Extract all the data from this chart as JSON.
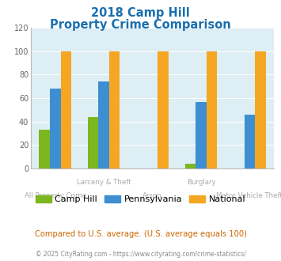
{
  "title_line1": "2018 Camp Hill",
  "title_line2": "Property Crime Comparison",
  "title_color": "#1a6faf",
  "categories": [
    "All Property Crime",
    "Larceny & Theft",
    "Arson",
    "Burglary",
    "Motor Vehicle Theft"
  ],
  "top_labels": [
    "",
    "Larceny & Theft",
    "",
    "Burglary",
    ""
  ],
  "bot_labels": [
    "All Property Crime",
    "",
    "Arson",
    "",
    "Motor Vehicle Theft"
  ],
  "camp_hill": [
    33,
    44,
    0,
    4,
    0
  ],
  "pennsylvania": [
    68,
    74,
    0,
    57,
    46
  ],
  "national": [
    100,
    100,
    100,
    100,
    100
  ],
  "camp_hill_color": "#7db720",
  "pennsylvania_color": "#3d8fd1",
  "national_color": "#f5a623",
  "ylim": [
    0,
    120
  ],
  "yticks": [
    0,
    20,
    40,
    60,
    80,
    100,
    120
  ],
  "background_color": "#ddeef5",
  "footer_text": "Compared to U.S. average. (U.S. average equals 100)",
  "footer_color": "#cc6600",
  "copyright_text": "© 2025 CityRating.com - https://www.cityrating.com/crime-statistics/",
  "copyright_color": "#888888",
  "bar_width": 0.22,
  "legend_labels": [
    "Camp Hill",
    "Pennsylvania",
    "National"
  ],
  "xlabel_color": "#aaaaaa"
}
